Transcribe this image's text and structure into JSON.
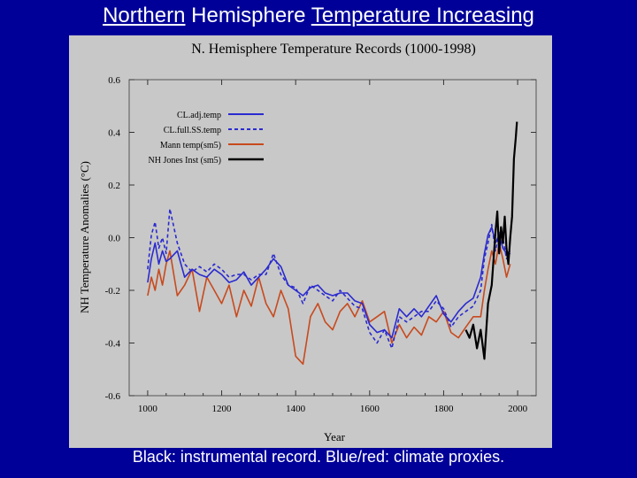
{
  "slide": {
    "title_parts": [
      {
        "text": "Northern",
        "underline": true
      },
      {
        "text": " Hemisphere ",
        "underline": false
      },
      {
        "text": "Temperature Increasing",
        "underline": true
      }
    ],
    "caption": "Black: instrumental record.  Blue/red: climate proxies.",
    "colors": {
      "background": "#000099",
      "panel": "#c8c8c8",
      "text": "#ffffff"
    }
  },
  "chart_data": {
    "type": "line",
    "title": "N. Hemisphere Temperature Records (1000-1998)",
    "xlabel": "Year",
    "ylabel": "NH Temperature Anomalies (°C)",
    "xlim": [
      950,
      2050
    ],
    "ylim": [
      -0.6,
      0.6
    ],
    "xticks": [
      1000,
      1200,
      1400,
      1600,
      1800,
      2000
    ],
    "yticks": [
      -0.6,
      -0.4,
      -0.2,
      0.0,
      0.2,
      0.4,
      0.6
    ],
    "ytick_labels": [
      "-0.6",
      "-0.4",
      "-0.2",
      "0.0",
      "0.2",
      "0.4",
      "0.6"
    ],
    "legend_position": "top-left",
    "series": [
      {
        "name": "CL.adj.temp",
        "color": "#2a2ad0",
        "style": "solid",
        "x": [
          1000,
          1010,
          1020,
          1030,
          1040,
          1050,
          1060,
          1080,
          1100,
          1120,
          1140,
          1160,
          1180,
          1200,
          1220,
          1240,
          1260,
          1280,
          1300,
          1320,
          1340,
          1360,
          1380,
          1400,
          1420,
          1440,
          1460,
          1480,
          1500,
          1520,
          1540,
          1560,
          1580,
          1600,
          1620,
          1640,
          1660,
          1680,
          1700,
          1720,
          1740,
          1760,
          1780,
          1800,
          1820,
          1840,
          1860,
          1880,
          1900,
          1910,
          1920,
          1930,
          1940,
          1950,
          1960,
          1970,
          1980
        ],
        "values": [
          -0.17,
          -0.08,
          -0.02,
          -0.1,
          -0.05,
          -0.09,
          -0.08,
          -0.05,
          -0.15,
          -0.12,
          -0.14,
          -0.15,
          -0.12,
          -0.14,
          -0.17,
          -0.16,
          -0.13,
          -0.18,
          -0.15,
          -0.12,
          -0.08,
          -0.11,
          -0.18,
          -0.2,
          -0.22,
          -0.19,
          -0.18,
          -0.21,
          -0.22,
          -0.21,
          -0.21,
          -0.24,
          -0.25,
          -0.33,
          -0.36,
          -0.35,
          -0.38,
          -0.27,
          -0.3,
          -0.27,
          -0.3,
          -0.26,
          -0.22,
          -0.29,
          -0.32,
          -0.28,
          -0.25,
          -0.23,
          -0.15,
          -0.06,
          0.01,
          0.04,
          -0.02,
          0.01,
          -0.04,
          -0.06,
          -0.05
        ]
      },
      {
        "name": "CL.full.SS.temp",
        "color": "#2a2ad0",
        "style": "dashed",
        "x": [
          1000,
          1010,
          1020,
          1030,
          1040,
          1050,
          1060,
          1080,
          1100,
          1120,
          1140,
          1160,
          1180,
          1200,
          1220,
          1240,
          1260,
          1280,
          1300,
          1320,
          1340,
          1360,
          1380,
          1400,
          1420,
          1440,
          1460,
          1480,
          1500,
          1520,
          1540,
          1560,
          1580,
          1600,
          1620,
          1640,
          1660,
          1680,
          1700,
          1720,
          1740,
          1760,
          1780,
          1800,
          1820,
          1840,
          1860,
          1880,
          1900,
          1910,
          1920,
          1930,
          1940,
          1950,
          1960,
          1970,
          1980
        ],
        "values": [
          -0.12,
          0.01,
          0.06,
          -0.04,
          0.0,
          -0.06,
          0.11,
          -0.02,
          -0.1,
          -0.13,
          -0.11,
          -0.13,
          -0.1,
          -0.12,
          -0.15,
          -0.14,
          -0.14,
          -0.16,
          -0.14,
          -0.14,
          -0.06,
          -0.14,
          -0.18,
          -0.19,
          -0.25,
          -0.18,
          -0.2,
          -0.22,
          -0.24,
          -0.2,
          -0.23,
          -0.26,
          -0.27,
          -0.36,
          -0.4,
          -0.35,
          -0.42,
          -0.3,
          -0.32,
          -0.3,
          -0.28,
          -0.28,
          -0.24,
          -0.27,
          -0.34,
          -0.3,
          -0.28,
          -0.26,
          -0.2,
          -0.08,
          -0.02,
          0.05,
          -0.05,
          0.02,
          0.0,
          -0.08,
          -0.06
        ]
      },
      {
        "name": "Mann temp(sm5)",
        "color": "#c84a1e",
        "style": "solid",
        "x": [
          1000,
          1010,
          1020,
          1030,
          1040,
          1050,
          1060,
          1080,
          1100,
          1120,
          1140,
          1160,
          1180,
          1200,
          1220,
          1240,
          1260,
          1280,
          1300,
          1320,
          1340,
          1360,
          1380,
          1400,
          1420,
          1440,
          1460,
          1480,
          1500,
          1520,
          1540,
          1560,
          1580,
          1600,
          1620,
          1640,
          1660,
          1680,
          1700,
          1720,
          1740,
          1760,
          1780,
          1800,
          1820,
          1840,
          1860,
          1880,
          1900,
          1910,
          1920,
          1930,
          1940,
          1950,
          1960,
          1970,
          1980
        ],
        "values": [
          -0.22,
          -0.15,
          -0.2,
          -0.12,
          -0.18,
          -0.1,
          -0.05,
          -0.22,
          -0.18,
          -0.12,
          -0.28,
          -0.15,
          -0.2,
          -0.25,
          -0.18,
          -0.3,
          -0.2,
          -0.26,
          -0.15,
          -0.25,
          -0.3,
          -0.2,
          -0.27,
          -0.45,
          -0.48,
          -0.3,
          -0.25,
          -0.32,
          -0.35,
          -0.28,
          -0.25,
          -0.3,
          -0.24,
          -0.32,
          -0.3,
          -0.28,
          -0.4,
          -0.33,
          -0.38,
          -0.34,
          -0.37,
          -0.3,
          -0.32,
          -0.28,
          -0.36,
          -0.38,
          -0.34,
          -0.3,
          -0.3,
          -0.2,
          -0.12,
          -0.05,
          -0.1,
          -0.02,
          -0.08,
          -0.15,
          -0.1
        ]
      },
      {
        "name": "NH  Jones Inst (sm5)",
        "color": "#000000",
        "style": "solid",
        "x": [
          1860,
          1870,
          1880,
          1890,
          1900,
          1910,
          1920,
          1930,
          1940,
          1945,
          1950,
          1955,
          1960,
          1965,
          1970,
          1975,
          1980,
          1985,
          1990,
          1995,
          1998
        ],
        "values": [
          -0.35,
          -0.38,
          -0.33,
          -0.42,
          -0.35,
          -0.46,
          -0.25,
          -0.18,
          0.02,
          0.1,
          -0.06,
          0.04,
          -0.02,
          0.08,
          -0.04,
          -0.1,
          0.0,
          0.08,
          0.3,
          0.38,
          0.44
        ]
      }
    ]
  }
}
